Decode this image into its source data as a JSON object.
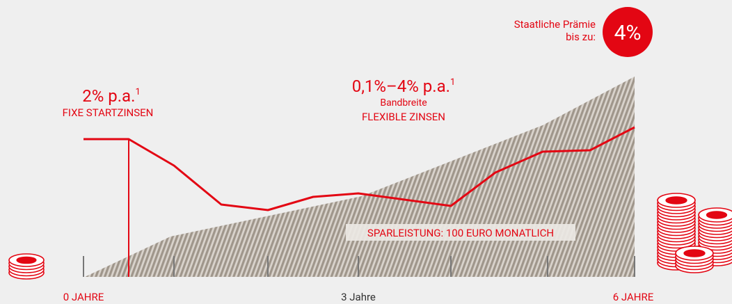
{
  "premium": {
    "label_lines": [
      "Staatliche Prämie",
      "bis zu:"
    ],
    "value": "4%"
  },
  "fixed": {
    "rate": "2% p.a.",
    "footnote": "1",
    "label": "FIXE STARTZINSEN"
  },
  "flexible": {
    "rate": "0,1%–4% p.a.",
    "footnote": "1",
    "sublabel": "Bandbreite",
    "label": "FLEXIBLE ZINSEN"
  },
  "savings_label": "SPARLEISTUNG: 100 EURO MONATLICH",
  "axis_labels": [
    "0 JAHRE",
    "3 Jahre",
    "6 JAHRE"
  ]
}
